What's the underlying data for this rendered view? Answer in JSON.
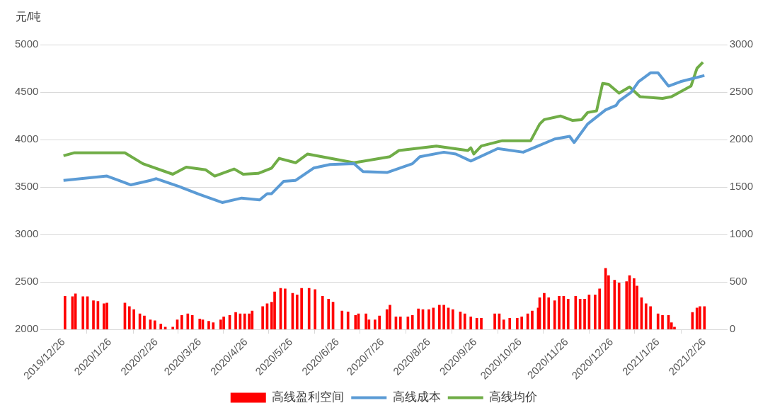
{
  "chart_data": {
    "type": "line",
    "ylabel": "元/吨",
    "xlim": [
      "2019-12-26",
      "2021-02-26"
    ],
    "xticks": [
      {
        "value": "2019-12-26",
        "label": "2019/12/26"
      },
      {
        "value": "2020-01-26",
        "label": "2020/1/26"
      },
      {
        "value": "2020-02-26",
        "label": "2020/2/26"
      },
      {
        "value": "2020-03-26",
        "label": "2020/3/26"
      },
      {
        "value": "2020-04-26",
        "label": "2020/4/26"
      },
      {
        "value": "2020-05-26",
        "label": "2020/5/26"
      },
      {
        "value": "2020-06-26",
        "label": "2020/6/26"
      },
      {
        "value": "2020-07-26",
        "label": "2020/7/26"
      },
      {
        "value": "2020-08-26",
        "label": "2020/8/26"
      },
      {
        "value": "2020-09-26",
        "label": "2020/9/26"
      },
      {
        "value": "2020-10-26",
        "label": "2020/10/26"
      },
      {
        "value": "2020-11-26",
        "label": "2020/11/26"
      },
      {
        "value": "2020-12-26",
        "label": "2020/12/26"
      },
      {
        "value": "2021-01-26",
        "label": "2021/1/26"
      },
      {
        "value": "2021-02-26",
        "label": "2021/2/26"
      }
    ],
    "ylim": [
      2000,
      5000
    ],
    "yticks": [
      2000,
      2500,
      3000,
      3500,
      4000,
      4500,
      5000
    ],
    "y2lim": [
      0,
      3000
    ],
    "y2ticks": [
      0,
      500,
      1000,
      1500,
      2000,
      2500,
      3000
    ],
    "grid": "y",
    "legend": "bottom",
    "series": [
      {
        "name": "高线盈利空间",
        "type": "bar",
        "axis": "y2",
        "color": "#ff0000",
        "x": [
          "2019-12-27",
          "2020-01-01",
          "2020-01-03",
          "2020-01-08",
          "2020-01-11",
          "2020-01-15",
          "2020-01-18",
          "2020-01-22",
          "2020-01-24",
          "2020-02-05",
          "2020-02-08",
          "2020-02-11",
          "2020-02-15",
          "2020-02-18",
          "2020-02-22",
          "2020-02-25",
          "2020-02-29",
          "2020-03-03",
          "2020-03-08",
          "2020-03-11",
          "2020-03-14",
          "2020-03-18",
          "2020-03-21",
          "2020-03-26",
          "2020-03-28",
          "2020-04-01",
          "2020-04-04",
          "2020-04-09",
          "2020-04-11",
          "2020-04-15",
          "2020-04-19",
          "2020-04-22",
          "2020-04-25",
          "2020-04-28",
          "2020-04-30",
          "2020-05-07",
          "2020-05-10",
          "2020-05-13",
          "2020-05-15",
          "2020-05-19",
          "2020-05-22",
          "2020-05-27",
          "2020-05-30",
          "2020-06-02",
          "2020-06-07",
          "2020-06-11",
          "2020-06-16",
          "2020-06-20",
          "2020-06-23",
          "2020-06-29",
          "2020-07-03",
          "2020-07-08",
          "2020-07-10",
          "2020-07-15",
          "2020-07-17",
          "2020-07-21",
          "2020-07-24",
          "2020-07-29",
          "2020-07-31",
          "2020-08-04",
          "2020-08-07",
          "2020-08-12",
          "2020-08-15",
          "2020-08-19",
          "2020-08-22",
          "2020-08-26",
          "2020-08-29",
          "2020-09-02",
          "2020-09-05",
          "2020-09-08",
          "2020-09-11",
          "2020-09-16",
          "2020-09-19",
          "2020-09-23",
          "2020-09-27",
          "2020-09-30",
          "2020-10-09",
          "2020-10-12",
          "2020-10-15",
          "2020-10-19",
          "2020-10-24",
          "2020-10-27",
          "2020-10-31",
          "2020-11-03",
          "2020-11-07",
          "2020-11-08",
          "2020-11-11",
          "2020-11-14",
          "2020-11-18",
          "2020-11-21",
          "2020-11-24",
          "2020-11-27",
          "2020-12-02",
          "2020-12-05",
          "2020-12-08",
          "2020-12-11",
          "2020-12-15",
          "2020-12-18",
          "2020-12-22",
          "2020-12-24",
          "2020-12-28",
          "2020-12-31",
          "2021-01-05",
          "2021-01-07",
          "2021-01-10",
          "2021-01-12",
          "2021-01-15",
          "2021-01-18",
          "2021-01-21",
          "2021-01-26",
          "2021-01-29",
          "2021-02-02",
          "2021-02-04",
          "2021-02-06",
          "2021-02-18",
          "2021-02-21",
          "2021-02-23",
          "2021-02-26"
        ],
        "values": [
          350,
          345,
          376,
          345,
          345,
          303,
          296,
          272,
          278,
          278,
          241,
          210,
          164,
          142,
          102,
          93,
          56,
          25,
          25,
          102,
          149,
          164,
          149,
          111,
          102,
          87,
          71,
          102,
          133,
          149,
          180,
          164,
          164,
          164,
          195,
          241,
          272,
          288,
          396,
          433,
          427,
          381,
          365,
          433,
          433,
          421,
          350,
          319,
          288,
          195,
          186,
          149,
          164,
          164,
          102,
          102,
          142,
          210,
          257,
          133,
          133,
          133,
          149,
          217,
          210,
          210,
          226,
          257,
          257,
          226,
          210,
          186,
          164,
          133,
          118,
          118,
          164,
          164,
          102,
          118,
          118,
          133,
          164,
          195,
          226,
          334,
          381,
          334,
          303,
          350,
          350,
          319,
          350,
          319,
          319,
          365,
          365,
          427,
          644,
          567,
          520,
          489,
          505,
          567,
          536,
          458,
          334,
          272,
          241,
          164,
          149,
          149,
          71,
          25,
          180,
          226,
          241,
          241
        ]
      },
      {
        "name": "高线成本",
        "color": "#5b9bd5",
        "x": [
          "2019-12-26",
          "2020-01-24",
          "2020-02-09",
          "2020-02-22",
          "2020-02-26",
          "2020-03-14",
          "2020-03-26",
          "2020-04-10",
          "2020-04-23",
          "2020-05-05",
          "2020-05-10",
          "2020-05-13",
          "2020-05-21",
          "2020-05-29",
          "2020-06-10",
          "2020-06-21",
          "2020-07-07",
          "2020-07-13",
          "2020-07-29",
          "2020-08-15",
          "2020-08-20",
          "2020-09-05",
          "2020-09-13",
          "2020-09-23",
          "2020-10-11",
          "2020-10-28",
          "2020-11-18",
          "2020-11-28",
          "2020-12-01",
          "2020-12-10",
          "2020-12-22",
          "2020-12-29",
          "2020-12-31",
          "2021-01-08",
          "2021-01-13",
          "2021-01-21",
          "2021-01-26",
          "2021-02-02",
          "2021-02-10",
          "2021-02-26"
        ],
        "values": [
          3570,
          3616,
          3523,
          3570,
          3588,
          3495,
          3421,
          3337,
          3384,
          3365,
          3430,
          3430,
          3560,
          3570,
          3700,
          3737,
          3746,
          3663,
          3653,
          3746,
          3820,
          3867,
          3848,
          3774,
          3905,
          3867,
          4006,
          4034,
          3969,
          4164,
          4313,
          4359,
          4406,
          4498,
          4610,
          4703,
          4703,
          4563,
          4610,
          4675
        ]
      },
      {
        "name": "高线均价",
        "color": "#70ad47",
        "x": [
          "2019-12-26",
          "2020-01-02",
          "2020-02-05",
          "2020-02-17",
          "2020-03-08",
          "2020-03-17",
          "2020-03-30",
          "2020-04-05",
          "2020-04-18",
          "2020-04-24",
          "2020-05-04",
          "2020-05-13",
          "2020-05-18",
          "2020-05-29",
          "2020-06-06",
          "2020-07-07",
          "2020-07-31",
          "2020-08-06",
          "2020-08-31",
          "2020-09-21",
          "2020-09-23",
          "2020-09-25",
          "2020-09-30",
          "2020-10-14",
          "2020-11-02",
          "2020-11-08",
          "2020-11-11",
          "2020-11-22",
          "2020-11-30",
          "2020-12-06",
          "2020-12-10",
          "2020-12-16",
          "2020-12-20",
          "2020-12-24",
          "2020-12-31",
          "2021-01-07",
          "2021-01-14",
          "2021-01-29",
          "2021-02-04",
          "2021-02-17",
          "2021-02-21",
          "2021-02-25"
        ],
        "values": [
          3830,
          3860,
          3860,
          3746,
          3635,
          3710,
          3681,
          3616,
          3690,
          3635,
          3644,
          3700,
          3802,
          3756,
          3848,
          3756,
          3820,
          3885,
          3932,
          3885,
          3913,
          3848,
          3932,
          3988,
          3988,
          4164,
          4210,
          4248,
          4201,
          4210,
          4285,
          4303,
          4591,
          4582,
          4489,
          4554,
          4452,
          4433,
          4452,
          4563,
          4750,
          4814
        ]
      }
    ]
  }
}
